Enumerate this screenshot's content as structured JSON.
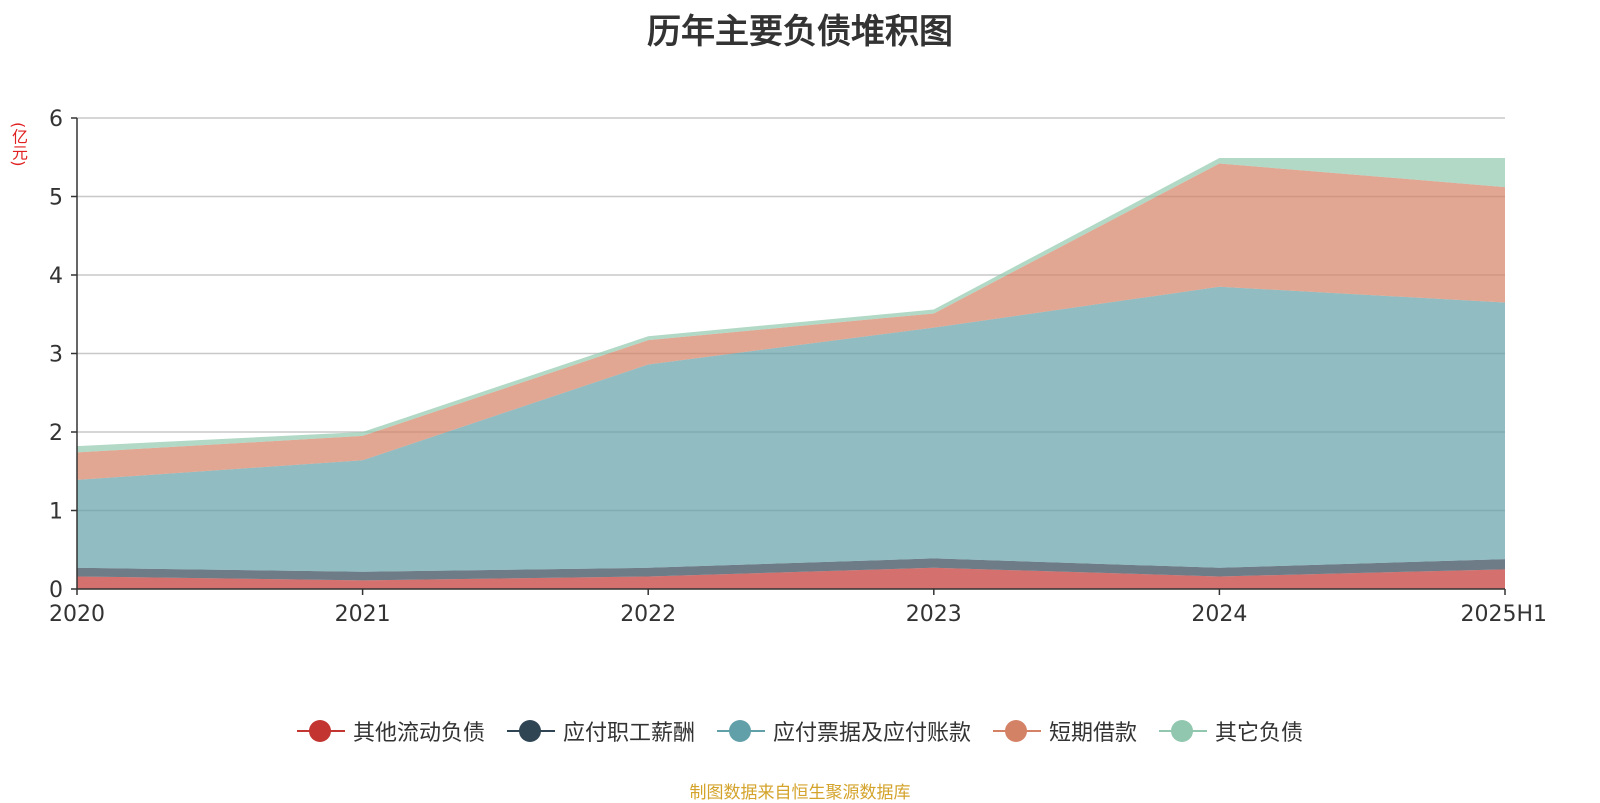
{
  "chart_data": {
    "type": "area",
    "title": "历年主要负债堆积图",
    "unit": "(亿元)",
    "categories": [
      "2020",
      "2021",
      "2022",
      "2023",
      "2024",
      "2025H1"
    ],
    "ylim": [
      0,
      6
    ],
    "yticks": [
      0,
      1,
      2,
      3,
      4,
      5,
      6
    ],
    "grid": true,
    "legend_position": "bottom",
    "stacked": true,
    "series": [
      {
        "name": "其他流动负债",
        "color": "#c23531",
        "values": [
          0.16,
          0.11,
          0.16,
          0.27,
          0.16,
          0.25
        ]
      },
      {
        "name": "应付职工薪酬",
        "color": "#2f4554",
        "values": [
          0.11,
          0.11,
          0.11,
          0.12,
          0.11,
          0.13
        ]
      },
      {
        "name": "应付票据及应付账款",
        "color": "#61a0a8",
        "values": [
          1.12,
          1.42,
          2.59,
          2.94,
          3.58,
          3.27
        ]
      },
      {
        "name": "短期借款",
        "color": "#d48265",
        "values": [
          0.35,
          0.31,
          0.31,
          0.18,
          1.57,
          1.47
        ]
      },
      {
        "name": "其它负债",
        "color": "#91c7ae",
        "values": [
          0.08,
          0.05,
          0.05,
          0.05,
          0.07,
          0.37
        ]
      }
    ]
  },
  "source_note": "制图数据来自恒生聚源数据库"
}
